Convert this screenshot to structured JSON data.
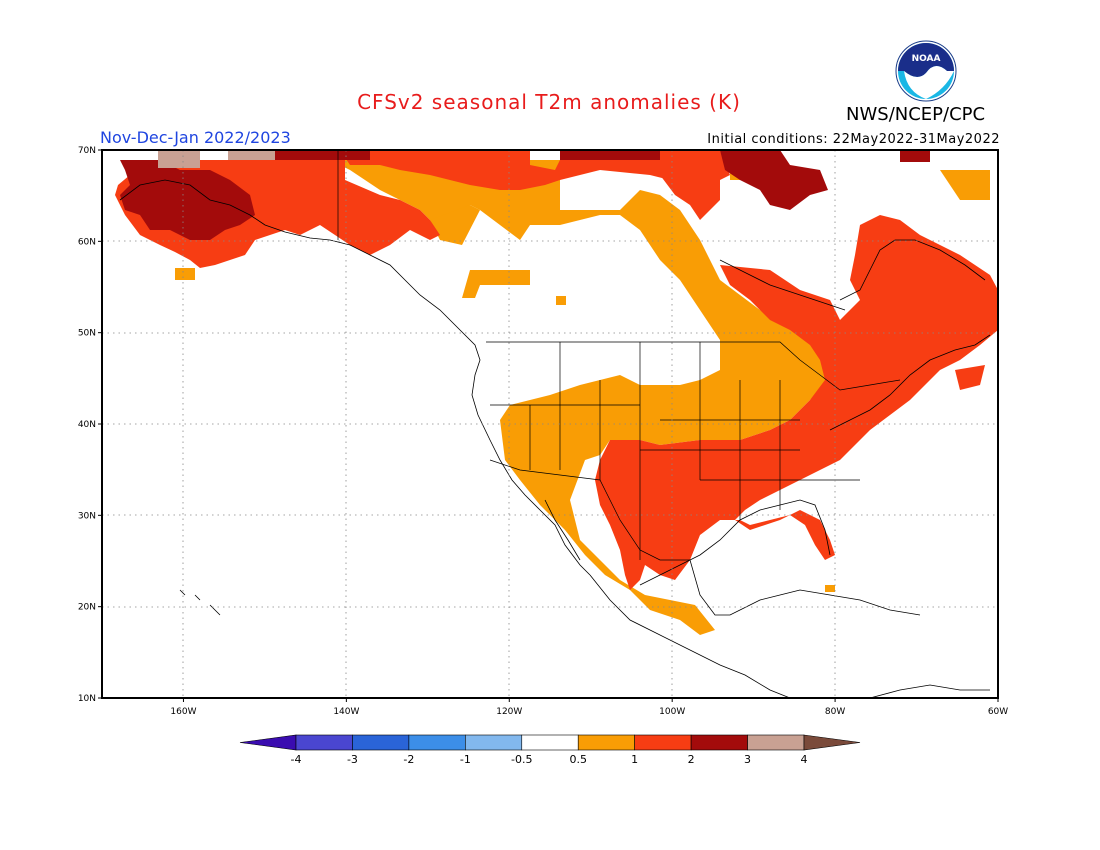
{
  "header": {
    "title": "CFSv2 seasonal T2m anomalies (K)",
    "agency": "NWS/NCEP/CPC",
    "season": "Nov-Dec-Jan 2022/2023",
    "initial_conditions": "Initial conditions: 22May2022-31May2022",
    "logo_text": "NOAA"
  },
  "map": {
    "projection": "lat-lon",
    "lon_range": [
      -170,
      -60
    ],
    "lat_range": [
      10,
      70
    ],
    "lat_ticks": [
      {
        "value": 70,
        "label": "70N"
      },
      {
        "value": 60,
        "label": "60N"
      },
      {
        "value": 50,
        "label": "50N"
      },
      {
        "value": 40,
        "label": "40N"
      },
      {
        "value": 30,
        "label": "30N"
      },
      {
        "value": 20,
        "label": "20N"
      },
      {
        "value": 10,
        "label": "10N"
      }
    ],
    "lon_ticks": [
      {
        "value": -160,
        "label": "160W"
      },
      {
        "value": -140,
        "label": "140W"
      },
      {
        "value": -120,
        "label": "120W"
      },
      {
        "value": -100,
        "label": "100W"
      },
      {
        "value": -80,
        "label": "80W"
      },
      {
        "value": -60,
        "label": "60W"
      }
    ],
    "grid": "dotted"
  },
  "colorbar": {
    "labels": [
      "-4",
      "-3",
      "-2",
      "-1",
      "-0.5",
      "0.5",
      "1",
      "2",
      "3",
      "4"
    ],
    "colors": [
      "#3a0cb0",
      "#4a46d0",
      "#2a64d8",
      "#3c8ee8",
      "#82b8ee",
      "#ffffff",
      "#f99d05",
      "#f73d13",
      "#a30b0b",
      "#c9a193",
      "#7a4a3a"
    ]
  },
  "anomaly_colors": {
    "0.5-1": "#f99d05",
    "1-2": "#f73d13",
    "2-3": "#a30b0b",
    "3-4": "#c9a193"
  }
}
